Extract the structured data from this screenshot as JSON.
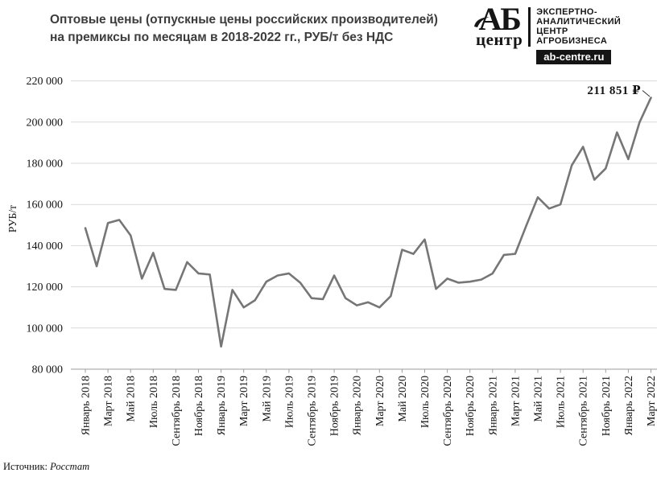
{
  "header": {
    "title_line1": "Оптовые цены (отпускные цены российских производителей)",
    "title_line2": "на премиксы по месяцам в 2018-2022 гг., РУБ/т без НДС"
  },
  "logo": {
    "abbr": "АБ",
    "abbr_sub": "центр",
    "tagline_lines": [
      "ЭКСПЕРТНО-",
      "АНАЛИТИЧЕСКИЙ",
      "ЦЕНТР",
      "АГРОБИЗНЕСА"
    ],
    "site": "ab-centre.ru"
  },
  "chart_data": {
    "type": "line",
    "title": "Оптовые цены (отпускные цены российских производителей) на премиксы по месяцам в 2018-2022 гг., РУБ/т без НДС",
    "xlabel": "",
    "ylabel": "РУБ/т",
    "ylim": [
      80000,
      220000
    ],
    "grid": true,
    "legend": "none",
    "line_color": "#767676",
    "months": [
      "Январь 2018",
      "Февраль 2018",
      "Март 2018",
      "Апрель 2018",
      "Май 2018",
      "Июнь 2018",
      "Июль 2018",
      "Август 2018",
      "Сентябрь 2018",
      "Октябрь 2018",
      "Ноябрь 2018",
      "Декабрь 2018",
      "Январь 2019",
      "Февраль 2019",
      "Март 2019",
      "Апрель 2019",
      "Май 2019",
      "Июнь 2019",
      "Июль 2019",
      "Август 2019",
      "Сентябрь 2019",
      "Октябрь 2019",
      "Ноябрь 2019",
      "Декабрь 2019",
      "Январь 2020",
      "Февраль 2020",
      "Март 2020",
      "Апрель 2020",
      "Май 2020",
      "Июнь 2020",
      "Июль 2020",
      "Август 2020",
      "Сентябрь 2020",
      "Октябрь 2020",
      "Ноябрь 2020",
      "Декабрь 2020",
      "Январь 2021",
      "Февраль 2021",
      "Март 2021",
      "Апрель 2021",
      "Май 2021",
      "Июнь 2021",
      "Июль 2021",
      "Август 2021",
      "Сентябрь 2021",
      "Октябрь 2021",
      "Ноябрь 2021",
      "Декабрь 2021",
      "Январь 2022",
      "Февраль 2022",
      "Март 2022"
    ],
    "x_tick_every": 2,
    "values": [
      148500,
      130000,
      151000,
      152500,
      145000,
      124000,
      136500,
      119000,
      118500,
      132000,
      126500,
      126000,
      91000,
      118500,
      110000,
      113500,
      122500,
      125500,
      126500,
      122000,
      114500,
      114000,
      125500,
      114500,
      111000,
      112500,
      110000,
      115500,
      138000,
      136000,
      143000,
      119000,
      124000,
      122000,
      122500,
      123500,
      126500,
      135500,
      136000,
      150000,
      163500,
      158000,
      160000,
      179000,
      188000,
      172000,
      177500,
      195000,
      182000,
      200000,
      211851
    ],
    "y_tick_values": [
      80000,
      100000,
      120000,
      140000,
      160000,
      180000,
      200000,
      220000
    ],
    "y_tick_labels": [
      "80 000",
      "100 000",
      "120 000",
      "140 000",
      "160 000",
      "180 000",
      "200 000",
      "220 000"
    ],
    "end_label": "211 851 ₽",
    "end_label_value": 211851
  },
  "source": {
    "prefix": "Источник:",
    "name": "Росстат"
  }
}
